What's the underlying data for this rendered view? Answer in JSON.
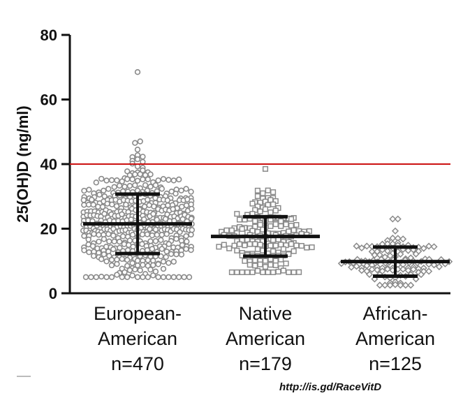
{
  "chart_data": {
    "type": "scatter",
    "ylabel": "25(OH)D (ng/ml)",
    "ylim": [
      0,
      80
    ],
    "yticks": [
      "0",
      "20",
      "40",
      "60",
      "80"
    ],
    "reference_line": {
      "y": 40,
      "color": "#cc1111"
    },
    "categories": [
      {
        "key": "eu",
        "lines": [
          "European-",
          "American",
          "n=470"
        ],
        "n": 470,
        "marker": "circle",
        "mean": 21.5,
        "sd_low": 12.3,
        "sd_high": 30.7,
        "max": 68.5,
        "min": 5
      },
      {
        "key": "na",
        "lines": [
          "Native",
          "American",
          "n=179"
        ],
        "n": 179,
        "marker": "square",
        "mean": 17.6,
        "sd_low": 11.5,
        "sd_high": 23.7,
        "max": 38.5,
        "min": 6.5
      },
      {
        "key": "af",
        "lines": [
          "African-",
          "American",
          "n=125"
        ],
        "n": 125,
        "marker": "diamond",
        "mean": 9.8,
        "sd_low": 5.3,
        "sd_high": 14.3,
        "max": 23,
        "min": 2.5
      }
    ],
    "marker_color": "#8a8a8a",
    "grid": false,
    "legend": "none"
  },
  "source_text": "http://is.gd/RaceVitD"
}
